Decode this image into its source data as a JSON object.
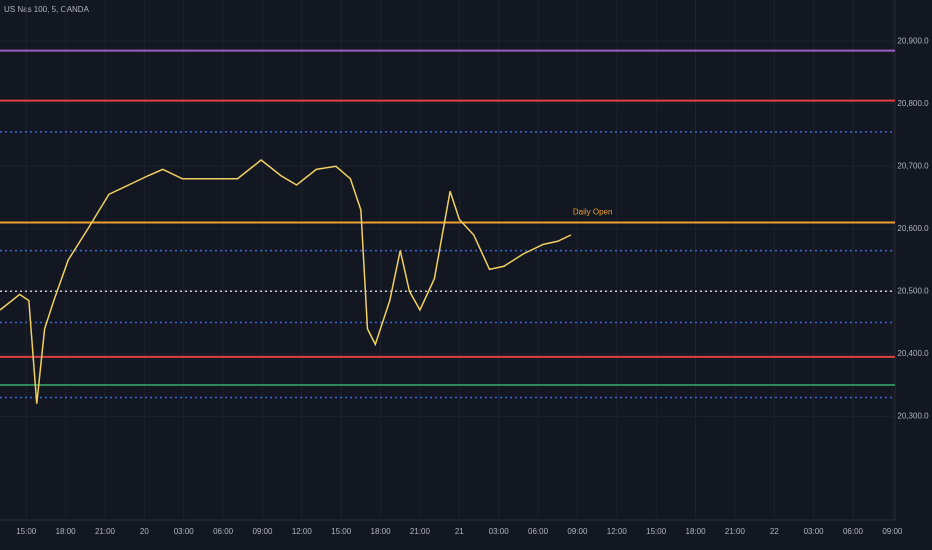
{
  "chart_data": {
    "type": "line",
    "title": "US Nas 100, 5, OANDA",
    "x": [
      -2.0,
      -0.5,
      0.2,
      0.8,
      1.4,
      2.1,
      3.2,
      4.7,
      6.3,
      7.8,
      9.3,
      10.4,
      11.9,
      13.8,
      16.1,
      17.9,
      19.4,
      20.6,
      22.1,
      23.6,
      24.7,
      25.5,
      26.0,
      26.6,
      27.7,
      28.5,
      29.2,
      30.0,
      31.1,
      32.3,
      33.0,
      34.1,
      35.3,
      36.4,
      37.9,
      39.4,
      40.5,
      41.5
    ],
    "values": [
      20470,
      20495,
      20485,
      20320,
      20440,
      20485,
      20550,
      20600,
      20655,
      20670,
      20685,
      20695,
      20680,
      20680,
      20680,
      20710,
      20685,
      20670,
      20695,
      20700,
      20680,
      20630,
      20440,
      20415,
      20485,
      20565,
      20500,
      20470,
      20520,
      20660,
      20615,
      20590,
      20535,
      20540,
      20560,
      20575,
      20580,
      20590
    ],
    "color": "#f0d060",
    "xlim": [
      -2,
      66.2
    ],
    "xticks": [
      {
        "value": 0,
        "label": "15:00"
      },
      {
        "value": 3,
        "label": "18:00"
      },
      {
        "value": 6,
        "label": "21:00"
      },
      {
        "value": 9,
        "label": "20"
      },
      {
        "value": 12,
        "label": "03:00"
      },
      {
        "value": 15,
        "label": "06:00"
      },
      {
        "value": 18,
        "label": "09:00"
      },
      {
        "value": 21,
        "label": "12:00"
      },
      {
        "value": 24,
        "label": "15:00"
      },
      {
        "value": 27,
        "label": "18:00"
      },
      {
        "value": 30,
        "label": "21:00"
      },
      {
        "value": 33,
        "label": "21"
      },
      {
        "value": 36,
        "label": "03:00"
      },
      {
        "value": 39,
        "label": "06:00"
      },
      {
        "value": 42,
        "label": "09:00"
      },
      {
        "value": 45,
        "label": "12:00"
      },
      {
        "value": 48,
        "label": "15:00"
      },
      {
        "value": 51,
        "label": "18:00"
      },
      {
        "value": 54,
        "label": "21:00"
      },
      {
        "value": 57,
        "label": "22"
      },
      {
        "value": 60,
        "label": "03:00"
      },
      {
        "value": 63,
        "label": "06:00"
      },
      {
        "value": 66,
        "label": "09:00"
      }
    ],
    "ylim": [
      20150,
      20950
    ],
    "yticks": [
      {
        "value": 20300,
        "label": "20,300.0"
      },
      {
        "value": 20400,
        "label": "20,400.0"
      },
      {
        "value": 20500,
        "label": "20,500.0"
      },
      {
        "value": 20600,
        "label": "20,600.0"
      },
      {
        "value": 20700,
        "label": "20,700.0"
      },
      {
        "value": 20800,
        "label": "20,800.0"
      },
      {
        "value": 20900,
        "label": "20,900.0"
      }
    ],
    "grid": true,
    "levels": [
      {
        "value": 20885,
        "color": "#9c5fc0",
        "style": "solid"
      },
      {
        "value": 20805,
        "color": "#e04040",
        "style": "solid"
      },
      {
        "value": 20755,
        "color": "#3a6ad8",
        "style": "dotted"
      },
      {
        "value": 20610,
        "color": "#f0a030",
        "style": "solid",
        "label": "Daily Open"
      },
      {
        "value": 20565,
        "color": "#3a6ad8",
        "style": "dotted"
      },
      {
        "value": 20500,
        "color": "#cccccc",
        "style": "dotted"
      },
      {
        "value": 20450,
        "color": "#3a6ad8",
        "style": "dotted"
      },
      {
        "value": 20395,
        "color": "#e04040",
        "style": "solid"
      },
      {
        "value": 20350,
        "color": "#2e8b57",
        "style": "solid"
      },
      {
        "value": 20330,
        "color": "#3a6ad8",
        "style": "dotted"
      }
    ]
  }
}
